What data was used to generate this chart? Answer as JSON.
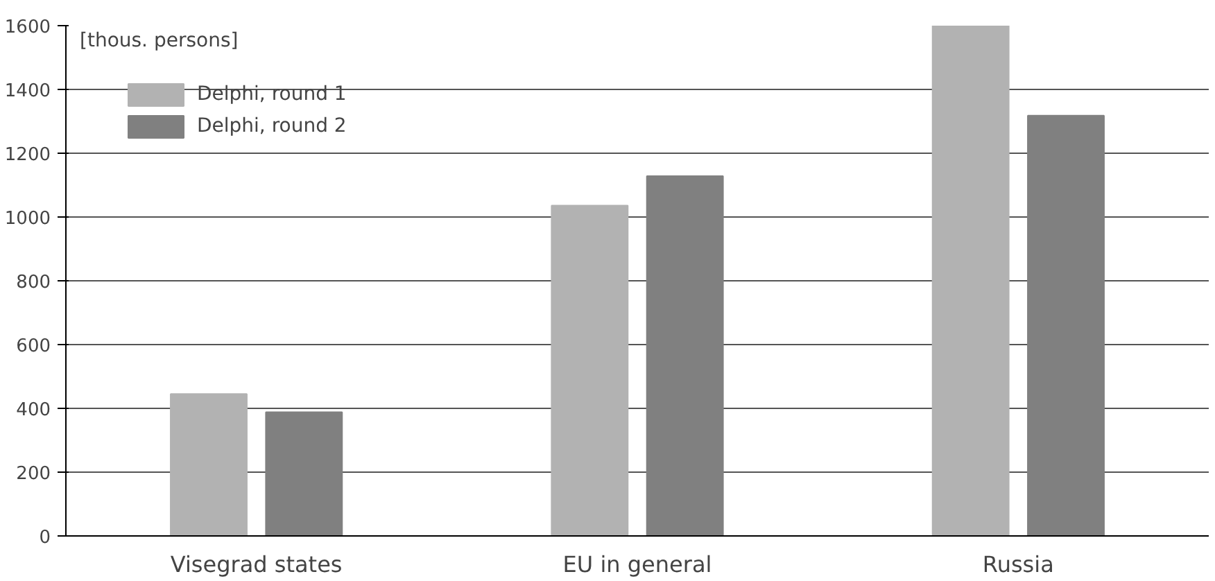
{
  "chart_data": {
    "type": "bar",
    "ylabel": "[thous. persons]",
    "categories": [
      "Visegrad states",
      "EU in general",
      "Russia"
    ],
    "series": [
      {
        "name": "Delphi, round 1",
        "color": "#b2b2b2",
        "values": [
          445,
          1036,
          1600
        ]
      },
      {
        "name": "Delphi, round 2",
        "color": "#808080",
        "values": [
          388,
          1128,
          1318
        ]
      }
    ],
    "ylim": [
      0,
      1600
    ],
    "yticks": [
      0,
      200,
      400,
      600,
      800,
      1000,
      1200,
      1400,
      1600
    ],
    "grid": "y",
    "legend": "top left"
  }
}
